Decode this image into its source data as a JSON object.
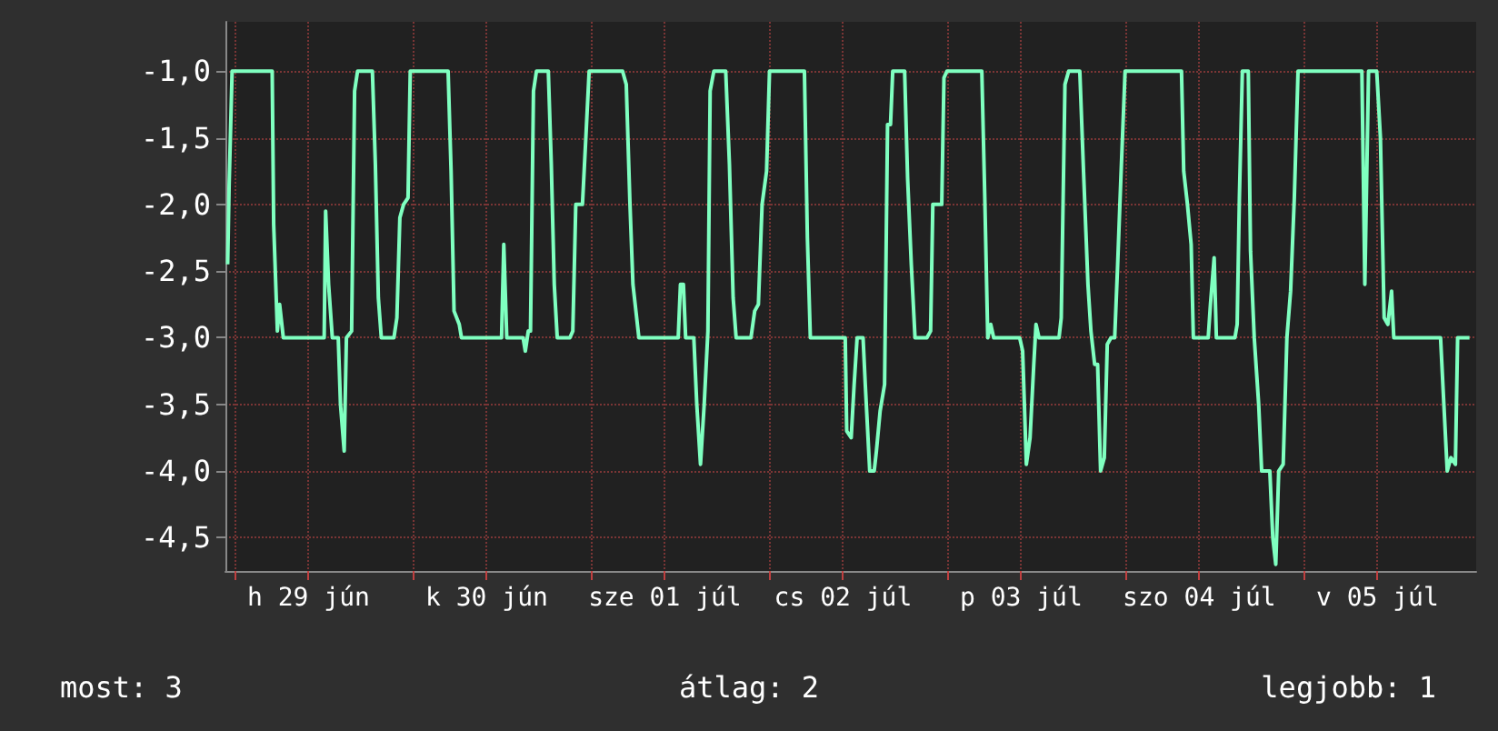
{
  "chart_data": {
    "type": "line",
    "marker": "none",
    "line_style": "solid",
    "grid": true,
    "xlim": [
      "--06-28T22:48",
      "--07-05T23:18"
    ],
    "ylim": [
      -4.75,
      -0.63
    ],
    "xticks": [
      {
        "value": "--06-29T00:00",
        "label": null
      },
      {
        "value": "--06-29T10:00",
        "label": "h 29 jún"
      },
      {
        "value": "--06-30T00:00",
        "label": null
      },
      {
        "value": "--06-30T10:00",
        "label": "k 30 jún"
      },
      {
        "value": "--07-01T00:00",
        "label": null
      },
      {
        "value": "--07-01T10:00",
        "label": "sze 01 júl"
      },
      {
        "value": "--07-02T00:00",
        "label": null
      },
      {
        "value": "--07-02T10:00",
        "label": "cs 02 júl"
      },
      {
        "value": "--07-03T00:00",
        "label": null
      },
      {
        "value": "--07-03T10:00",
        "label": "p 03 júl"
      },
      {
        "value": "--07-04T00:00",
        "label": null
      },
      {
        "value": "--07-04T10:00",
        "label": "szo 04 júl"
      },
      {
        "value": "--07-05T00:00",
        "label": null
      },
      {
        "value": "--07-05T10:00",
        "label": "v 05 júl"
      }
    ],
    "yticks": [
      {
        "value": -1,
        "label": "-1,0"
      },
      {
        "value": -1.5,
        "label": "-1,5"
      },
      {
        "value": -2,
        "label": "-2,0"
      },
      {
        "value": -2.5,
        "label": "-2,5"
      },
      {
        "value": -3,
        "label": "-3,0"
      },
      {
        "value": -3.5,
        "label": "-3,5"
      },
      {
        "value": -4,
        "label": "-4,0"
      },
      {
        "value": -4.5,
        "label": "-4,5"
      }
    ],
    "annotations": [
      "most: 3",
      "átlag: 2",
      "legjobb: 1"
    ],
    "series": [
      {
        "color": "#7fffc0",
        "x": [
          "--06-28T23:06",
          "--06-28T23:18",
          "--06-28T23:42",
          "--06-29T05:06",
          "--06-29T05:18",
          "--06-29T05:48",
          "--06-29T06:06",
          "--06-29T06:36",
          "--06-29T12:06",
          "--06-29T12:18",
          "--06-29T12:42",
          "--06-29T13:12",
          "--06-29T14:00",
          "--06-29T14:18",
          "--06-29T14:48",
          "--06-29T15:06",
          "--06-29T15:48",
          "--06-29T16:12",
          "--06-29T16:36",
          "--06-29T18:36",
          "--06-29T19:00",
          "--06-29T19:24",
          "--06-29T19:48",
          "--06-29T21:30",
          "--06-29T21:54",
          "--06-29T22:18",
          "--06-29T22:48",
          "--06-29T23:24",
          "--06-29T23:42",
          "--06-30T04:48",
          "--06-30T05:12",
          "--06-30T05:36",
          "--06-30T06:18",
          "--06-30T06:36",
          "--06-30T12:00",
          "--06-30T12:18",
          "--06-30T12:42",
          "--06-30T14:54",
          "--06-30T15:12",
          "--06-30T15:36",
          "--06-30T15:54",
          "--06-30T16:18",
          "--06-30T16:42",
          "--06-30T18:18",
          "--06-30T18:42",
          "--06-30T19:06",
          "--06-30T19:30",
          "--06-30T21:12",
          "--06-30T21:36",
          "--06-30T22:00",
          "--06-30T22:54",
          "--06-30T23:24",
          "--06-30T23:48",
          "--07-01T04:18",
          "--07-01T04:48",
          "--07-01T05:18",
          "--07-01T05:42",
          "--07-01T06:06",
          "--07-01T06:30",
          "--07-01T11:48",
          "--07-01T12:06",
          "--07-01T12:30",
          "--07-01T12:48",
          "--07-01T13:54",
          "--07-01T14:18",
          "--07-01T14:48",
          "--07-01T15:18",
          "--07-01T15:48",
          "--07-01T16:06",
          "--07-01T16:36",
          "--07-01T18:12",
          "--07-01T18:42",
          "--07-01T19:12",
          "--07-01T19:36",
          "--07-01T21:36",
          "--07-01T22:06",
          "--07-01T22:36",
          "--07-01T23:06",
          "--07-01T23:42",
          "--07-02T00:06",
          "--07-02T04:48",
          "--07-02T05:12",
          "--07-02T05:36",
          "--07-02T10:18",
          "--07-02T10:30",
          "--07-02T11:06",
          "--07-02T11:30",
          "--07-02T11:54",
          "--07-02T12:42",
          "--07-02T13:00",
          "--07-02T13:36",
          "--07-02T14:12",
          "--07-02T14:30",
          "--07-02T15:00",
          "--07-02T15:36",
          "--07-02T16:00",
          "--07-02T16:24",
          "--07-02T16:42",
          "--07-02T18:18",
          "--07-02T18:42",
          "--07-02T19:12",
          "--07-02T19:42",
          "--07-02T21:18",
          "--07-02T21:48",
          "--07-02T22:06",
          "--07-02T23:18",
          "--07-02T23:36",
          "--07-03T00:00",
          "--07-03T04:42",
          "--07-03T05:06",
          "--07-03T05:30",
          "--07-03T05:54",
          "--07-03T06:18",
          "--07-03T09:48",
          "--07-03T10:12",
          "--07-03T10:42",
          "--07-03T11:12",
          "--07-03T11:42",
          "--07-03T12:00",
          "--07-03T12:24",
          "--07-03T15:06",
          "--07-03T15:24",
          "--07-03T15:54",
          "--07-03T16:24",
          "--07-03T17:54",
          "--07-03T18:24",
          "--07-03T19:00",
          "--07-03T19:24",
          "--07-03T19:54",
          "--07-03T20:18",
          "--07-03T20:42",
          "--07-03T21:12",
          "--07-03T21:36",
          "--07-03T22:06",
          "--07-03T22:36",
          "--07-03T23:00",
          "--07-03T23:24",
          "--07-04T00:00",
          "--07-04T07:36",
          "--07-04T07:54",
          "--07-04T08:24",
          "--07-04T08:54",
          "--07-04T09:12",
          "--07-04T11:12",
          "--07-04T11:30",
          "--07-04T12:00",
          "--07-04T12:18",
          "--07-04T14:48",
          "--07-04T15:06",
          "--07-04T15:24",
          "--07-04T15:48",
          "--07-04T16:36",
          "--07-04T16:54",
          "--07-04T17:24",
          "--07-04T18:00",
          "--07-04T18:24",
          "--07-04T19:30",
          "--07-04T19:54",
          "--07-04T20:18",
          "--07-04T20:42",
          "--07-04T21:18",
          "--07-04T21:48",
          "--07-04T22:18",
          "--07-04T22:48",
          "--07-04T23:18",
          "--07-05T07:54",
          "--07-05T08:18",
          "--07-05T08:48",
          "--07-05T09:54",
          "--07-05T10:24",
          "--07-05T10:54",
          "--07-05T11:24",
          "--07-05T11:54",
          "--07-05T12:12",
          "--07-05T18:30",
          "--07-05T18:54",
          "--07-05T19:24",
          "--07-05T19:54",
          "--07-05T20:30",
          "--07-05T20:48",
          "--07-05T22:24"
        ],
        "values": [
          -2.45,
          -1.85,
          -1,
          -1,
          -2.15,
          -2.95,
          -2.75,
          -3,
          -3,
          -2.05,
          -2.6,
          -3,
          -3,
          -3.5,
          -3.85,
          -3,
          -2.95,
          -1.15,
          -1,
          -1,
          -1.7,
          -2.7,
          -3,
          -3,
          -2.85,
          -2.1,
          -2,
          -1.95,
          -1,
          -1,
          -1.75,
          -2.8,
          -2.9,
          -3,
          -3,
          -2.3,
          -3,
          -3,
          -3.1,
          -2.95,
          -2.95,
          -1.15,
          -1,
          -1,
          -1.7,
          -2.6,
          -3,
          -3,
          -2.95,
          -2,
          -2,
          -1.45,
          -1,
          -1,
          -1.1,
          -2,
          -2.6,
          -2.8,
          -3,
          -3,
          -2.6,
          -2.6,
          -3,
          -3,
          -3.5,
          -3.95,
          -3.5,
          -2.95,
          -1.15,
          -1,
          -1,
          -1.7,
          -2.7,
          -3,
          -3,
          -2.8,
          -2.75,
          -2,
          -1.75,
          -1,
          -1,
          -2.25,
          -3,
          -3,
          -3.7,
          -3.75,
          -3.35,
          -3,
          -3,
          -3.35,
          -4,
          -4,
          -3.85,
          -3.55,
          -3.35,
          -1.4,
          -1.4,
          -1,
          -1,
          -1.8,
          -2.45,
          -3,
          -3,
          -2.95,
          -2,
          -2,
          -1.05,
          -1,
          -1,
          -1.95,
          -3,
          -2.9,
          -3,
          -3,
          -3.1,
          -3.95,
          -3.75,
          -3.2,
          -2.9,
          -3,
          -3,
          -2.85,
          -1.1,
          -1,
          -1,
          -1.75,
          -2.6,
          -2.95,
          -3.2,
          -3.2,
          -4,
          -3.9,
          -3.05,
          -3,
          -3,
          -2.45,
          -1.85,
          -1,
          -1,
          -1.75,
          -2,
          -2.3,
          -3,
          -3,
          -2.75,
          -2.4,
          -3,
          -3,
          -2.9,
          -1.95,
          -1,
          -1,
          -2.35,
          -3,
          -3.5,
          -4,
          -4,
          -4.5,
          -4.7,
          -4,
          -3.95,
          -3,
          -2.65,
          -1.95,
          -1,
          -1,
          -2.6,
          -1,
          -1,
          -1.5,
          -2.85,
          -2.9,
          -2.65,
          -3,
          -3,
          -3.45,
          -4,
          -3.9,
          -3.95,
          -3,
          -3
        ]
      }
    ]
  }
}
